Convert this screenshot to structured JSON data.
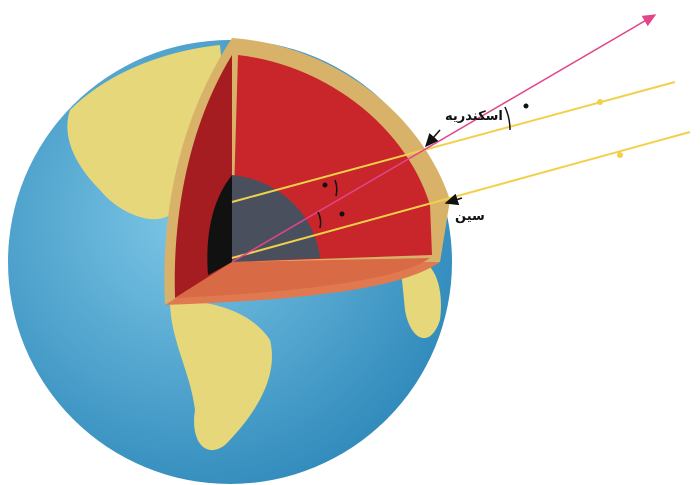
{
  "labels": {
    "alexandria": "اسکندریه",
    "syene": "سین"
  }
}
